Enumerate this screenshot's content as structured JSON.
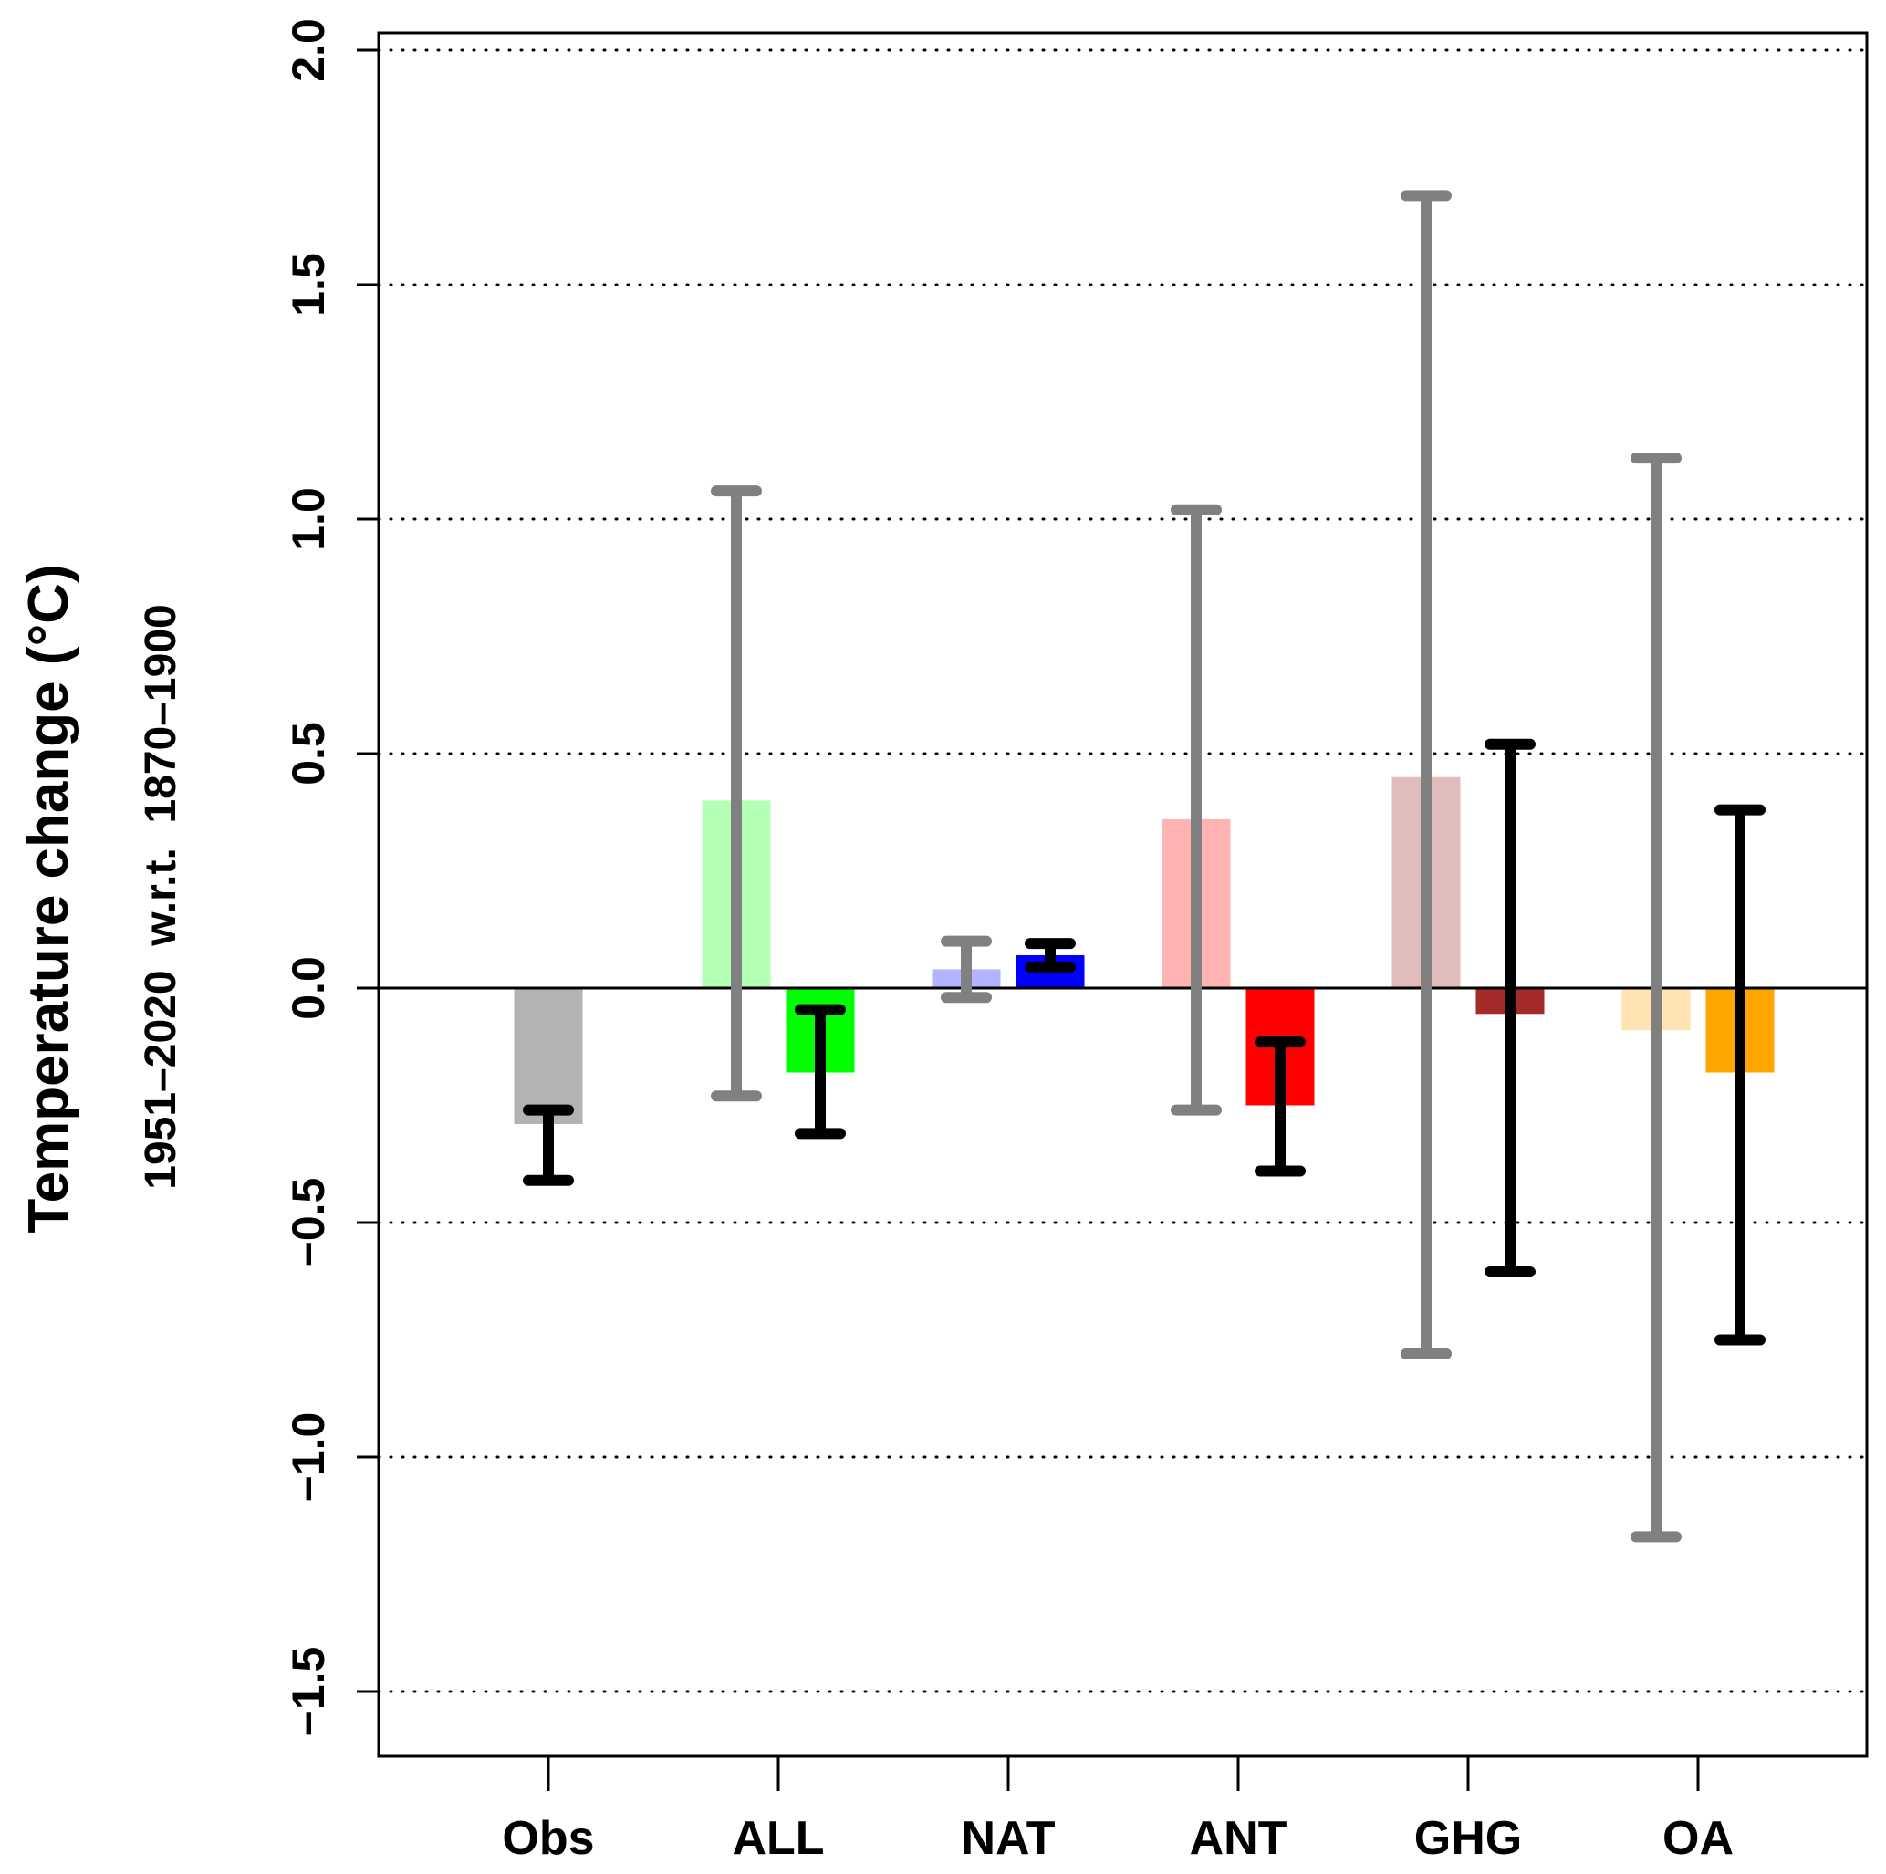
{
  "chart_data": {
    "type": "bar",
    "title": "",
    "ylabel": "Temperature change (°C)",
    "ylabel_sub": "1951–2020  w.r.t.  1870–1900",
    "xlabel": "",
    "ylim": [
      -1.64,
      2.04
    ],
    "yticks": [
      2.0,
      1.5,
      1.0,
      0.5,
      0.0,
      -0.5,
      -1.0,
      -1.5
    ],
    "ytick_labels": [
      "2.0",
      "1.5",
      "1.0",
      "0.5",
      "0.0",
      "−0.5",
      "−1.0",
      "−1.5"
    ],
    "grid": "horizontal dotted at y ticks",
    "zero_line": true,
    "categories": [
      "Obs",
      "ALL",
      "NAT",
      "ANT",
      "GHG",
      "OA"
    ],
    "series": [
      {
        "name": "model-1 (light)",
        "values": [
          null,
          0.4,
          0.04,
          0.36,
          0.45,
          -0.09
        ],
        "colors": [
          null,
          "#b3ffb3",
          "#b3b3ff",
          "#ffb3b3",
          "#e0bcbc",
          "#ffe3b3"
        ],
        "error_color": "#808080",
        "error_low": [
          null,
          -0.23,
          -0.02,
          -0.26,
          -0.78,
          -1.17
        ],
        "error_high": [
          null,
          1.06,
          0.1,
          1.02,
          1.69,
          1.13
        ]
      },
      {
        "name": "model-2 / observations (solid)",
        "values": [
          -0.29,
          -0.18,
          0.07,
          -0.25,
          -0.055,
          -0.18
        ],
        "colors": [
          "#b3b3b3",
          "#00ff00",
          "#0000ff",
          "#ff0000",
          "#a52a2a",
          "#ffa500"
        ],
        "error_color": "#000000",
        "error_low": [
          -0.41,
          -0.31,
          0.045,
          -0.39,
          -0.605,
          -0.75
        ],
        "error_high": [
          -0.26,
          -0.046,
          0.095,
          -0.115,
          0.52,
          0.38
        ]
      }
    ]
  }
}
